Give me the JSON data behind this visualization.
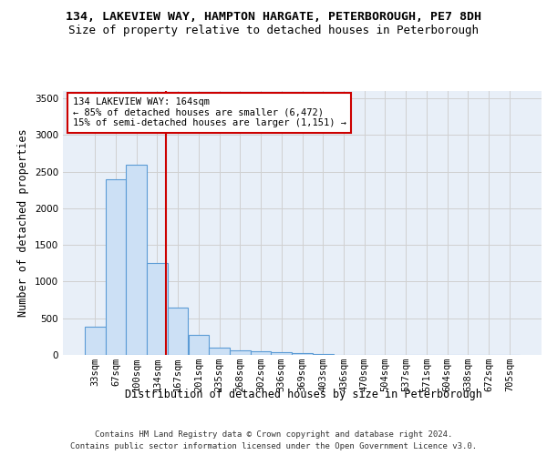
{
  "title1": "134, LAKEVIEW WAY, HAMPTON HARGATE, PETERBOROUGH, PE7 8DH",
  "title2": "Size of property relative to detached houses in Peterborough",
  "xlabel": "Distribution of detached houses by size in Peterborough",
  "ylabel": "Number of detached properties",
  "categories": [
    "33sqm",
    "67sqm",
    "100sqm",
    "134sqm",
    "167sqm",
    "201sqm",
    "235sqm",
    "268sqm",
    "302sqm",
    "336sqm",
    "369sqm",
    "403sqm",
    "436sqm",
    "470sqm",
    "504sqm",
    "537sqm",
    "571sqm",
    "604sqm",
    "638sqm",
    "672sqm",
    "705sqm"
  ],
  "values": [
    390,
    2400,
    2600,
    1250,
    650,
    270,
    100,
    60,
    55,
    40,
    20,
    10,
    5,
    3,
    2,
    1,
    1,
    0,
    0,
    0,
    0
  ],
  "bar_color": "#cce0f5",
  "bar_edge_color": "#5b9bd5",
  "bar_edge_width": 0.8,
  "grid_color": "#d0d0d0",
  "background_color": "#e8eff8",
  "vline_color": "#cc0000",
  "annotation_text": "134 LAKEVIEW WAY: 164sqm\n← 85% of detached houses are smaller (6,472)\n15% of semi-detached houses are larger (1,151) →",
  "annotation_box_color": "#cc0000",
  "ylim": [
    0,
    3600
  ],
  "yticks": [
    0,
    500,
    1000,
    1500,
    2000,
    2500,
    3000,
    3500
  ],
  "footnote1": "Contains HM Land Registry data © Crown copyright and database right 2024.",
  "footnote2": "Contains public sector information licensed under the Open Government Licence v3.0.",
  "title1_fontsize": 9.5,
  "title2_fontsize": 9,
  "axis_label_fontsize": 8.5,
  "tick_fontsize": 7.5,
  "annotation_fontsize": 7.5,
  "footnote_fontsize": 6.5
}
